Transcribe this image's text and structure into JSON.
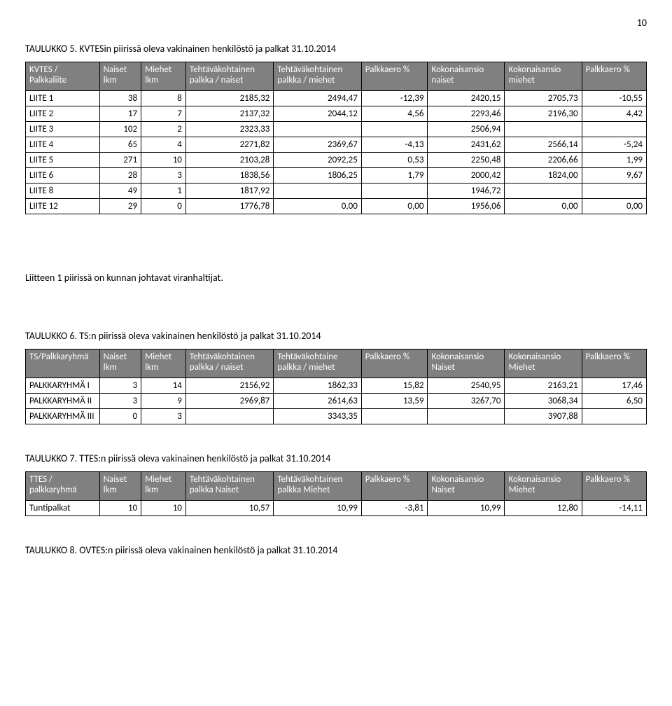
{
  "page_number": "10",
  "caption5": "TAULUKKO 5. KVTESin piirissä oleva vakinainen henkilöstö ja palkat 31.10.2014",
  "note6": "Liitteen 1 piirissä on kunnan johtavat viranhaltijat.",
  "caption6": "TAULUKKO 6. TS:n piirissä oleva vakinainen henkilöstö ja palkat 31.10.2014",
  "caption7": "TAULUKKO 7. TTES:n piirissä oleva vakinainen henkilöstö ja palkat 31.10.2014",
  "caption8": "TAULUKKO 8. OVTES:n piirissä oleva vakinainen henkilöstö ja palkat 31.10.2014",
  "table5": {
    "head": {
      "c0a": "KVTES /",
      "c0b": "Palkkaliite",
      "c1a": "Naiset",
      "c1b": "lkm",
      "c2a": "Miehet",
      "c2b": "lkm",
      "c3a": "Tehtäväkohtainen",
      "c3b": "palkka / naiset",
      "c4a": "Tehtäväkohtainen",
      "c4b": "palkka / miehet",
      "c5a": "Palkkaero %",
      "c5b": "",
      "c6a": "Kokonaisansio",
      "c6b": "naiset",
      "c7a": "Kokonaisansio",
      "c7b": "miehet",
      "c8a": "Palkkaero %",
      "c8b": ""
    },
    "rows": [
      {
        "c0": "LIITE 1",
        "c1": "38",
        "c2": "8",
        "c3": "2185,32",
        "c4": "2494,47",
        "c5": "-12,39",
        "c6": "2420,15",
        "c7": "2705,73",
        "c8": "-10,55"
      },
      {
        "c0": "LIITE 2",
        "c1": "17",
        "c2": "7",
        "c3": "2137,32",
        "c4": "2044,12",
        "c5": "4,56",
        "c6": "2293,46",
        "c7": "2196,30",
        "c8": "4,42"
      },
      {
        "c0": "LIITE 3",
        "c1": "102",
        "c2": "2",
        "c3": "2323,33",
        "c4": "",
        "c5": "",
        "c6": "2506,94",
        "c7": "",
        "c8": ""
      },
      {
        "c0": "LIITE 4",
        "c1": "65",
        "c2": "4",
        "c3": "2271,82",
        "c4": "2369,67",
        "c5": "-4,13",
        "c6": "2431,62",
        "c7": "2566,14",
        "c8": "-5,24"
      },
      {
        "c0": "LIITE 5",
        "c1": "271",
        "c2": "10",
        "c3": "2103,28",
        "c4": "2092,25",
        "c5": "0,53",
        "c6": "2250,48",
        "c7": "2206,66",
        "c8": "1,99"
      },
      {
        "c0": "LIITE 6",
        "c1": "28",
        "c2": "3",
        "c3": "1838,56",
        "c4": "1806,25",
        "c5": "1,79",
        "c6": "2000,42",
        "c7": "1824,00",
        "c8": "9,67"
      },
      {
        "c0": "LIITE 8",
        "c1": "49",
        "c2": "1",
        "c3": "1817,92",
        "c4": "",
        "c5": "",
        "c6": "1946,72",
        "c7": "",
        "c8": ""
      },
      {
        "c0": "LIITE 12",
        "c1": "29",
        "c2": "0",
        "c3": "1776,78",
        "c4": "0,00",
        "c5": "0,00",
        "c6": "1956,06",
        "c7": "0,00",
        "c8": "0,00"
      }
    ]
  },
  "table6": {
    "head": {
      "c0a": "TS/Palkkaryhmä",
      "c0b": "",
      "c1a": "Naiset",
      "c1b": "lkm",
      "c2a": "Miehet",
      "c2b": "lkm",
      "c3a": "Tehtäväkohtainen",
      "c3b": "palkka / naiset",
      "c4a": "Tehtäväkohtaine",
      "c4b": "palkka / miehet",
      "c5a": "Palkkaero %",
      "c5b": "",
      "c6a": "Kokonaisansio",
      "c6b": "Naiset",
      "c7a": "Kokonaisansio",
      "c7b": "Miehet",
      "c8a": "Palkkaero %",
      "c8b": ""
    },
    "rows": [
      {
        "c0": "PALKKARYHMÄ I",
        "c1": "3",
        "c2": "14",
        "c3": "2156,92",
        "c4": "1862,33",
        "c5": "15,82",
        "c6": "2540,95",
        "c7": "2163,21",
        "c8": "17,46"
      },
      {
        "c0": "PALKKARYHMÄ II",
        "c1": "3",
        "c2": "9",
        "c3": "2969,87",
        "c4": "2614,63",
        "c5": "13,59",
        "c6": "3267,70",
        "c7": "3068,34",
        "c8": "6,50"
      },
      {
        "c0": "PALKKARYHMÄ III",
        "c1": "0",
        "c2": "3",
        "c3": "",
        "c4": "3343,35",
        "c5": "",
        "c6": "",
        "c7": "3907,88",
        "c8": ""
      }
    ]
  },
  "table7": {
    "head": {
      "c0a": "TTES /",
      "c0b": "palkkaryhmä",
      "c1a": "Naiset",
      "c1b": "lkm",
      "c2a": "Miehet",
      "c2b": "lkm",
      "c3a": "Tehtäväkohtainen",
      "c3b": "palkka Naiset",
      "c4a": "Tehtäväkohtainen",
      "c4b": "palkka Miehet",
      "c5a": "Palkkaero %",
      "c5b": "",
      "c6a": "Kokonaisansio",
      "c6b": "Naiset",
      "c7a": "Kokonaisansio",
      "c7b": "Miehet",
      "c8a": "Palkkaero %",
      "c8b": ""
    },
    "rows": [
      {
        "c0": "Tuntipalkat",
        "c1": "10",
        "c2": "10",
        "c3": "10,57",
        "c4": "10,99",
        "c5": "-3,81",
        "c6": "10,99",
        "c7": "12,80",
        "c8": "-14,11"
      }
    ]
  }
}
